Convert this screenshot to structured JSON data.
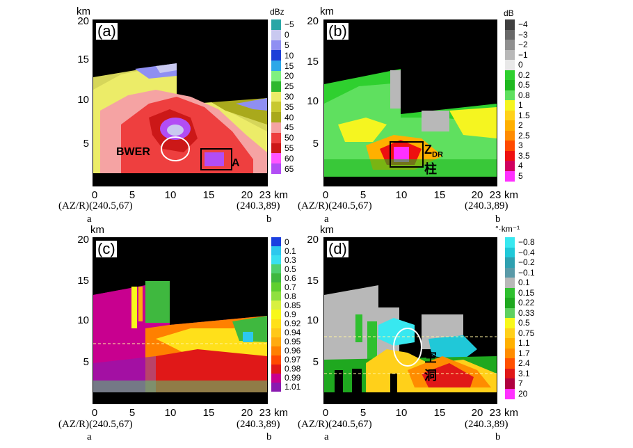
{
  "panels": [
    {
      "id": "a",
      "tag": "(a)",
      "unit": "dBz",
      "levels": [
        "−5",
        "0",
        "5",
        "10",
        "15",
        "20",
        "25",
        "30",
        "35",
        "40",
        "45",
        "50",
        "55",
        "60",
        "65"
      ],
      "colors": [
        "#2aa6a6",
        "#c9c9f0",
        "#8f8ff2",
        "#1d3fd8",
        "#2ca8e8",
        "#7ff07f",
        "#2fb82f",
        "#ecec68",
        "#c8c830",
        "#a9a91c",
        "#f5a3a3",
        "#ee3f3f",
        "#cc1818",
        "#ff55ff",
        "#b24df5"
      ],
      "annotations": [
        "BWER",
        "A"
      ],
      "y_ticks": [
        "20",
        "15",
        "10",
        "5"
      ],
      "x_ticks": [
        "0",
        "5",
        "10",
        "15",
        "20",
        "23"
      ],
      "km_label": "km",
      "x_km": "km",
      "left_coord": "(AZ/R)(240.5,67)",
      "right_coord": "(240.3,89)",
      "left_point": "a",
      "right_point": "b"
    },
    {
      "id": "b",
      "tag": "(b)",
      "unit": "dB",
      "levels": [
        "−4",
        "−3",
        "−2",
        "−1",
        "0",
        "0.2",
        "0.5",
        "0.8",
        "1",
        "1.5",
        "2",
        "2.5",
        "3",
        "3.5",
        "4",
        "5"
      ],
      "colors": [
        "#404040",
        "#686868",
        "#8f8f8f",
        "#b8b8b8",
        "#e8e8e8",
        "#2fd02f",
        "#1fb81f",
        "#5fe05f",
        "#f5f520",
        "#ffd21a",
        "#ffb000",
        "#ff8c00",
        "#ff4a00",
        "#ee1010",
        "#d00060",
        "#ff30ff"
      ],
      "annotations": [
        "Z",
        "DR",
        "柱"
      ],
      "y_ticks": [
        "20",
        "15",
        "10",
        "5"
      ],
      "x_ticks": [
        "0",
        "5",
        "10",
        "15",
        "20",
        "23"
      ],
      "km_label": "km",
      "x_km": "km",
      "left_coord": "(AZ/R)(240.5,67)",
      "right_coord": "(240.3,89)",
      "left_point": "a",
      "right_point": "b"
    },
    {
      "id": "c",
      "tag": "(c)",
      "unit": "",
      "levels": [
        "0",
        "0.1",
        "0.3",
        "0.5",
        "0.6",
        "0.7",
        "0.8",
        "0.85",
        "0.9",
        "0.92",
        "0.94",
        "0.95",
        "0.96",
        "0.97",
        "0.98",
        "0.99",
        "1.01"
      ],
      "colors": [
        "#1a3fe0",
        "#2cc8ee",
        "#38e0f0",
        "#4fd06f",
        "#3fb83f",
        "#5fcf2f",
        "#8fe03f",
        "#d8f040",
        "#f8f81a",
        "#ffe01a",
        "#ffc81a",
        "#ffaa10",
        "#ff8000",
        "#ff4a00",
        "#e01818",
        "#c8008f",
        "#8a1ab0"
      ],
      "annotations": [],
      "y_ticks": [
        "20",
        "15",
        "10",
        "5"
      ],
      "x_ticks": [
        "0",
        "5",
        "10",
        "15",
        "20",
        "23"
      ],
      "km_label": "km",
      "x_km": "km",
      "left_coord": "(AZ/R)(240.5,67)",
      "right_coord": "(240.3,89)",
      "left_point": "a",
      "right_point": "b"
    },
    {
      "id": "d",
      "tag": "(d)",
      "unit": "°·km⁻¹",
      "levels": [
        "−0.8",
        "−0.4",
        "−0.2",
        "−0.1",
        "0.1",
        "0.15",
        "0.22",
        "0.33",
        "0.5",
        "0.75",
        "1.1",
        "1.7",
        "2.4",
        "3.1",
        "7",
        "20"
      ],
      "colors": [
        "#38e8f0",
        "#20c8d8",
        "#2fa0b0",
        "#5a9aa8",
        "#b8b8b8",
        "#2fc02f",
        "#1fa81f",
        "#5fd05f",
        "#f8f81a",
        "#ffd01a",
        "#ffb000",
        "#ff8c00",
        "#ff5000",
        "#e01818",
        "#b0003f",
        "#ff30ff"
      ],
      "annotations": [
        "空洞"
      ],
      "y_ticks": [
        "20",
        "15",
        "10",
        "5"
      ],
      "x_ticks": [
        "0",
        "5",
        "10",
        "15",
        "20",
        "23"
      ],
      "km_label": "km",
      "x_km": "km",
      "left_coord": "(AZ/R)(240.5,67)",
      "right_coord": "(240.3,89)",
      "left_point": "a",
      "right_point": "b"
    }
  ]
}
